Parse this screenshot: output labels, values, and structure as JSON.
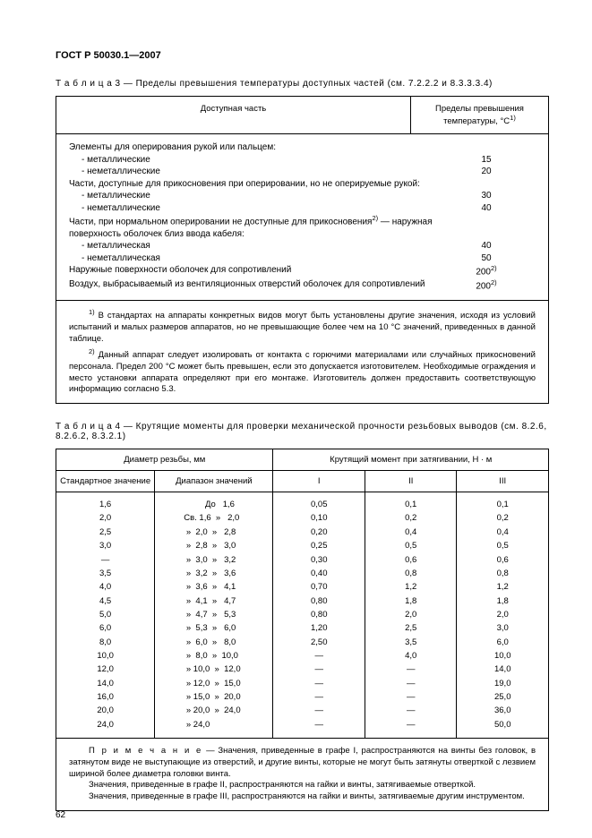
{
  "header": {
    "standard": "ГОСТ Р 50030.1—2007"
  },
  "table3": {
    "caption_prefix": "Т а б л и ц а  3",
    "caption": " — Пределы превышения температуры доступных частей (см.  7.2.2.2 и 8.3.3.3.4)",
    "col1": "Доступная часть",
    "col2_l1": "Пределы превышения",
    "col2_l2": "температуры, °С",
    "sup1": "1)",
    "rows": [
      {
        "label": "Элементы для оперирования рукой или пальцем:",
        "val": "",
        "indent": false
      },
      {
        "label": "- металлические",
        "val": "15",
        "indent": true
      },
      {
        "label": "- неметаллические",
        "val": "20",
        "indent": true
      },
      {
        "label": "Части, доступные для прикосновения при оперировании, но не оперируемые рукой:",
        "val": "",
        "indent": false
      },
      {
        "label": "- металлические",
        "val": "30",
        "indent": true
      },
      {
        "label": "- неметаллические",
        "val": "40",
        "indent": true
      },
      {
        "label": "Части, при нормальном оперировании не доступные для прикосновения<sup>2)</sup>  — наружная поверхность оболочек близ ввода кабеля:",
        "val": "",
        "indent": false
      },
      {
        "label": "- металлическая",
        "val": "40",
        "indent": true
      },
      {
        "label": "- неметаллическая",
        "val": "50",
        "indent": true
      },
      {
        "label": "Наружные поверхности оболочек для сопротивлений",
        "val": "200<sup>2)</sup>",
        "indent": false
      },
      {
        "label": "Воздух, выбрасываемый из вентиляционных отверстий оболочек для сопротивлений",
        "val": "200<sup>2)</sup>",
        "indent": false
      }
    ],
    "note1": "<sup>1)</sup> В стандартах на аппараты конкретных видов могут быть установлены другие значения, исходя из условий испытаний и  малых размеров аппаратов, но не превышающие более чем  на 10 °С значений, приведенных в данной таблице.",
    "note2": "<sup>2)</sup> Данный аппарат следует изолировать от контакта с горючими материалами или случайных прикосновений персонала. Предел 200 °С может быть превышен, если это допускается изготовителем. Необходимые ограждения и место установки аппарата определяют при его монтаже.  Изготовитель должен  предоставить соответствующую информацию согласно  5.3."
  },
  "table4": {
    "caption_prefix": "Т а б л и ц а  4",
    "caption": " — Крутящие моменты для проверки механической прочности резьбовых  выводов (см.  8.2.6, 8.2.6.2, 8.3.2.1)",
    "head_group1": "Диаметр резьбы, мм",
    "head_group2": "Крутящий момент при затягивании, Н · м",
    "sub1": "Стандартное значение",
    "sub2": "Диапазон значений",
    "c1": "I",
    "c2": "II",
    "c3": "III",
    "rows": [
      {
        "std": "1,6",
        "range": "         До   1,6",
        "i": "0,05",
        "ii": "0,1",
        "iii": "0,1"
      },
      {
        "std": "2,0",
        "range": "Св. 1,6  »   2,0",
        "i": "0,10",
        "ii": "0,2",
        "iii": "0,2"
      },
      {
        "std": "2,5",
        "range": " »  2,0  »   2,8",
        "i": "0,20",
        "ii": "0,4",
        "iii": "0,4"
      },
      {
        "std": "3,0",
        "range": " »  2,8  »   3,0",
        "i": "0,25",
        "ii": "0,5",
        "iii": "0,5"
      },
      {
        "std": "—",
        "range": " »  3,0  »   3,2",
        "i": "0,30",
        "ii": "0,6",
        "iii": "0,6"
      },
      {
        "std": "3,5",
        "range": " »  3,2  »   3,6",
        "i": "0,40",
        "ii": "0,8",
        "iii": "0,8"
      },
      {
        "std": "4,0",
        "range": " »  3,6  »   4,1",
        "i": "0,70",
        "ii": "1,2",
        "iii": "1,2"
      },
      {
        "std": "4,5",
        "range": " »  4,1  »   4,7",
        "i": "0,80",
        "ii": "1,8",
        "iii": "1,8"
      },
      {
        "std": "5,0",
        "range": " »  4,7  »   5,3",
        "i": "0,80",
        "ii": "2,0",
        "iii": "2,0"
      },
      {
        "std": "6,0",
        "range": " »  5,3  »   6,0",
        "i": "1,20",
        "ii": "2,5",
        "iii": "3,0"
      },
      {
        "std": "8,0",
        "range": " »  6,0  »   8,0",
        "i": "2,50",
        "ii": "3,5",
        "iii": "6,0"
      },
      {
        "std": "10,0",
        "range": " »  8,0  »  10,0",
        "i": "—",
        "ii": "4,0",
        "iii": "10,0"
      },
      {
        "std": "12,0",
        "range": " » 10,0  »  12,0",
        "i": "—",
        "ii": "—",
        "iii": "14,0"
      },
      {
        "std": "14,0",
        "range": " » 12,0  »  15,0",
        "i": "—",
        "ii": "—",
        "iii": "19,0"
      },
      {
        "std": "16,0",
        "range": " » 15,0  »  20,0",
        "i": "—",
        "ii": "—",
        "iii": "25,0"
      },
      {
        "std": "20,0",
        "range": " » 20,0  »  24,0",
        "i": "—",
        "ii": "—",
        "iii": "36,0"
      },
      {
        "std": "24,0",
        "range": " » 24,0",
        "i": "—",
        "ii": "—",
        "iii": "50,0"
      }
    ],
    "note_p1_prefix": "П р и м е ч а н и е",
    "note_p1": " — Значения, приведенные в графе I,  распространяются на винты без головок, в затянутом виде не  выступающие из отверстий,  и другие винты, которые не могут быть затянуты отверткой с лезвием   шириной более диаметра головки винта.",
    "note_p2": "Значения, приведенные в графе II, распространяются на гайки и винты, затягиваемые отверткой.",
    "note_p3": "Значения, приведенные в графе III, распространяются на гайки  и винты, затягиваемые другим инструментом."
  },
  "page_number": "62"
}
